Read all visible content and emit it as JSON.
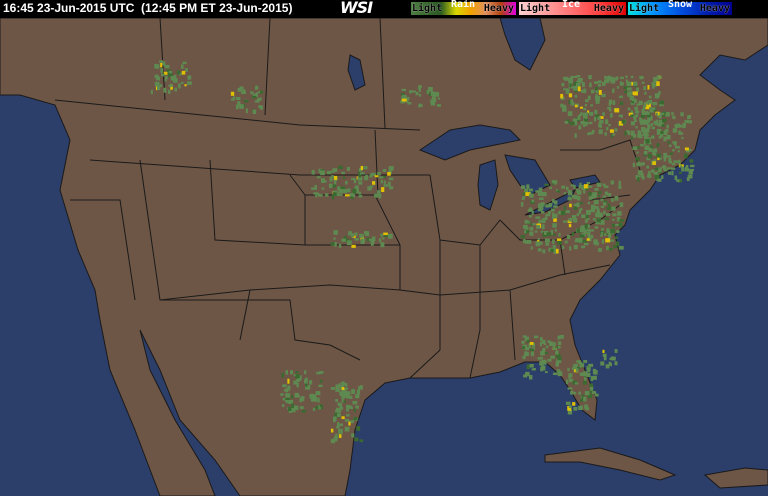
{
  "header": {
    "timestamp": "16:45 23-Jun-2015 UTC  (12:45 PM ET 23-Jun-2015)",
    "logo": "WSI"
  },
  "legend": {
    "rain": {
      "title": "Rain",
      "light": "Light",
      "heavy": "Heavy",
      "colors": [
        "#4f7f45",
        "#3a6a30",
        "#2a5a22",
        "#d8d800",
        "#f0a000",
        "#e09060",
        "#b04010",
        "#e000e0"
      ]
    },
    "ice": {
      "title": "Ice",
      "light": "Light",
      "heavy": "Heavy",
      "colors": [
        "#ffd0d0",
        "#ffa0a0",
        "#ff7070",
        "#ff4040",
        "#e00000"
      ]
    },
    "snow": {
      "title": "Snow",
      "light": "Light",
      "heavy": "Heavy",
      "colors": [
        "#00e0e0",
        "#0090ff",
        "#0050e0",
        "#0020b0",
        "#000090"
      ]
    }
  },
  "map": {
    "ocean_color": "#2c3e6a",
    "land_color": "#6e5646",
    "border_color": "#1a1a1a",
    "lake_color": "#2c3e6a"
  }
}
